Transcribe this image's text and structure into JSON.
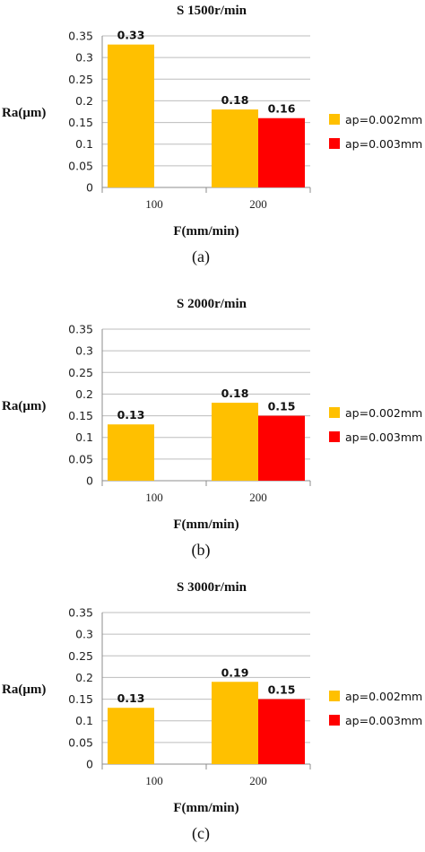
{
  "chart_data": [
    {
      "type": "bar",
      "title": "S 1500r/min",
      "xlabel": "F(mm/min)",
      "ylabel": "Ra(μm)",
      "caption": "(a)",
      "categories": [
        "100",
        "200"
      ],
      "ylim": [
        0,
        0.35
      ],
      "yticks": [
        "0",
        "0.05",
        "0.1",
        "0.15",
        "0.2",
        "0.25",
        "0.3",
        "0.35"
      ],
      "grid": true,
      "legend_position": "right",
      "series": [
        {
          "name": "ap=0.002mm",
          "color": "#FFC000",
          "values": [
            0.33,
            0.18
          ],
          "labels": [
            "0.33",
            "0.18"
          ]
        },
        {
          "name": "ap=0.003mm",
          "color": "#FF0000",
          "values": [
            null,
            0.16
          ],
          "labels": [
            null,
            "0.16"
          ]
        }
      ]
    },
    {
      "type": "bar",
      "title": "S 2000r/min",
      "xlabel": "F(mm/min)",
      "ylabel": "Ra(μm)",
      "caption": "(b)",
      "categories": [
        "100",
        "200"
      ],
      "ylim": [
        0,
        0.35
      ],
      "yticks": [
        "0",
        "0.05",
        "0.1",
        "0.15",
        "0.2",
        "0.25",
        "0.3",
        "0.35"
      ],
      "grid": true,
      "legend_position": "right",
      "series": [
        {
          "name": "ap=0.002mm",
          "color": "#FFC000",
          "values": [
            0.13,
            0.18
          ],
          "labels": [
            "0.13",
            "0.18"
          ]
        },
        {
          "name": "ap=0.003mm",
          "color": "#FF0000",
          "values": [
            null,
            0.15
          ],
          "labels": [
            null,
            "0.15"
          ]
        }
      ]
    },
    {
      "type": "bar",
      "title": "S 3000r/min",
      "xlabel": "F(mm/min)",
      "ylabel": "Ra(μm)",
      "caption": "(c)",
      "categories": [
        "100",
        "200"
      ],
      "ylim": [
        0,
        0.35
      ],
      "yticks": [
        "0",
        "0.05",
        "0.1",
        "0.15",
        "0.2",
        "0.25",
        "0.3",
        "0.35"
      ],
      "grid": true,
      "legend_position": "right",
      "series": [
        {
          "name": "ap=0.002mm",
          "color": "#FFC000",
          "values": [
            0.13,
            0.19
          ],
          "labels": [
            "0.13",
            "0.19"
          ]
        },
        {
          "name": "ap=0.003mm",
          "color": "#FF0000",
          "values": [
            null,
            0.15
          ],
          "labels": [
            null,
            "0.15"
          ]
        }
      ]
    }
  ]
}
